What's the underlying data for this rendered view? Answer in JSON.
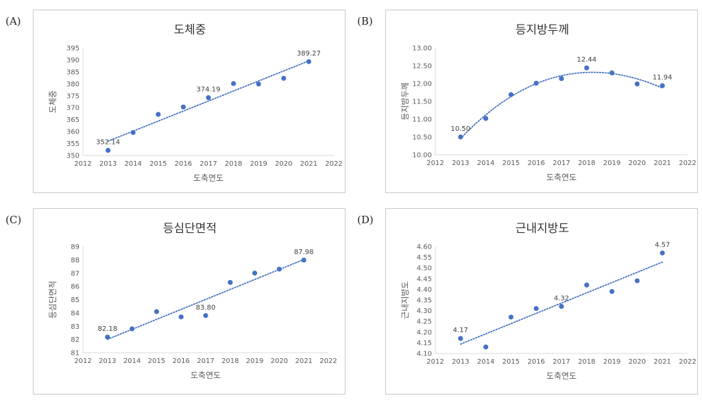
{
  "panel_labels": [
    "(A)",
    "(B)",
    "(C)",
    "(D)"
  ],
  "colors": {
    "marker": "#4472C4",
    "trend": "#4472C4",
    "axis": "#d9d9d9",
    "text": "#595959"
  },
  "chart_data": [
    {
      "type": "scatter",
      "title": "도체중",
      "xlabel": "도축연도",
      "ylabel": "도체중",
      "xlim": [
        2012,
        2022
      ],
      "ylim": [
        350,
        395
      ],
      "xticks": [
        2012,
        2013,
        2014,
        2015,
        2016,
        2017,
        2018,
        2019,
        2020,
        2021,
        2022
      ],
      "yticks": [
        350,
        355,
        360,
        365,
        370,
        375,
        380,
        385,
        390,
        395
      ],
      "ytick_labels": [
        "350",
        "355",
        "360",
        "365",
        "370",
        "375",
        "380",
        "385",
        "390",
        "395"
      ],
      "x": [
        2013,
        2014,
        2015,
        2016,
        2017,
        2018,
        2019,
        2020,
        2021
      ],
      "y": [
        352.14,
        359.6,
        367.2,
        370.3,
        374.19,
        380.1,
        379.9,
        382.3,
        389.27
      ],
      "labels": [
        {
          "x": 2013,
          "y": 352.14,
          "text": "352.14"
        },
        {
          "x": 2017,
          "y": 374.19,
          "text": "374.19"
        },
        {
          "x": 2021,
          "y": 389.27,
          "text": "389.27"
        }
      ],
      "trendline": "linear",
      "grid": false
    },
    {
      "type": "scatter",
      "title": "등지방두께",
      "xlabel": "도축연도",
      "ylabel": "등지방두께",
      "xlim": [
        2012,
        2022
      ],
      "ylim": [
        10.0,
        13.0
      ],
      "xticks": [
        2012,
        2013,
        2014,
        2015,
        2016,
        2017,
        2018,
        2019,
        2020,
        2021,
        2022
      ],
      "yticks": [
        10.0,
        10.5,
        11.0,
        11.5,
        12.0,
        12.5,
        13.0
      ],
      "ytick_labels": [
        "10.00",
        "10.50",
        "11.00",
        "11.50",
        "12.00",
        "12.50",
        "13.00"
      ],
      "x": [
        2013,
        2014,
        2015,
        2016,
        2017,
        2018,
        2019,
        2020,
        2021
      ],
      "y": [
        10.5,
        11.02,
        11.69,
        12.01,
        12.14,
        12.44,
        12.3,
        11.99,
        11.94
      ],
      "labels": [
        {
          "x": 2013,
          "y": 10.5,
          "text": "10.50"
        },
        {
          "x": 2018,
          "y": 12.44,
          "text": "12.44"
        },
        {
          "x": 2021,
          "y": 11.94,
          "text": "11.94"
        }
      ],
      "trendline": "polynomial",
      "grid": false
    },
    {
      "type": "scatter",
      "title": "등심단면적",
      "xlabel": "도축연도",
      "ylabel": "등심단면적",
      "xlim": [
        2012,
        2022
      ],
      "ylim": [
        81,
        89
      ],
      "xticks": [
        2012,
        2013,
        2014,
        2015,
        2016,
        2017,
        2018,
        2019,
        2020,
        2021,
        2022
      ],
      "yticks": [
        81,
        82,
        83,
        84,
        85,
        86,
        87,
        88,
        89
      ],
      "ytick_labels": [
        "81",
        "82",
        "83",
        "84",
        "85",
        "86",
        "87",
        "88",
        "89"
      ],
      "x": [
        2013,
        2014,
        2015,
        2016,
        2017,
        2018,
        2019,
        2020,
        2021
      ],
      "y": [
        82.18,
        82.8,
        84.1,
        83.7,
        83.8,
        86.3,
        87.0,
        87.3,
        87.98
      ],
      "labels": [
        {
          "x": 2013,
          "y": 82.18,
          "text": "82.18"
        },
        {
          "x": 2017,
          "y": 83.8,
          "text": "83.80"
        },
        {
          "x": 2021,
          "y": 87.98,
          "text": "87.98"
        }
      ],
      "trendline": "linear",
      "grid": false
    },
    {
      "type": "scatter",
      "title": "근내지방도",
      "xlabel": "도축연도",
      "ylabel": "근내지방도",
      "xlim": [
        2012,
        2022
      ],
      "ylim": [
        4.1,
        4.6
      ],
      "xticks": [
        2012,
        2013,
        2014,
        2015,
        2016,
        2017,
        2018,
        2019,
        2020,
        2021,
        2022
      ],
      "yticks": [
        4.1,
        4.15,
        4.2,
        4.25,
        4.3,
        4.35,
        4.4,
        4.45,
        4.5,
        4.55,
        4.6
      ],
      "ytick_labels": [
        "4.10",
        "4.15",
        "4.20",
        "4.25",
        "4.30",
        "4.35",
        "4.40",
        "4.45",
        "4.50",
        "4.55",
        "4.60"
      ],
      "x": [
        2013,
        2014,
        2015,
        2016,
        2017,
        2018,
        2019,
        2020,
        2021
      ],
      "y": [
        4.17,
        4.13,
        4.27,
        4.31,
        4.32,
        4.42,
        4.39,
        4.44,
        4.57
      ],
      "labels": [
        {
          "x": 2013,
          "y": 4.17,
          "text": "4.17"
        },
        {
          "x": 2017,
          "y": 4.32,
          "text": "4.32"
        },
        {
          "x": 2021,
          "y": 4.57,
          "text": "4.57"
        }
      ],
      "trendline": "linear",
      "grid": false
    }
  ]
}
